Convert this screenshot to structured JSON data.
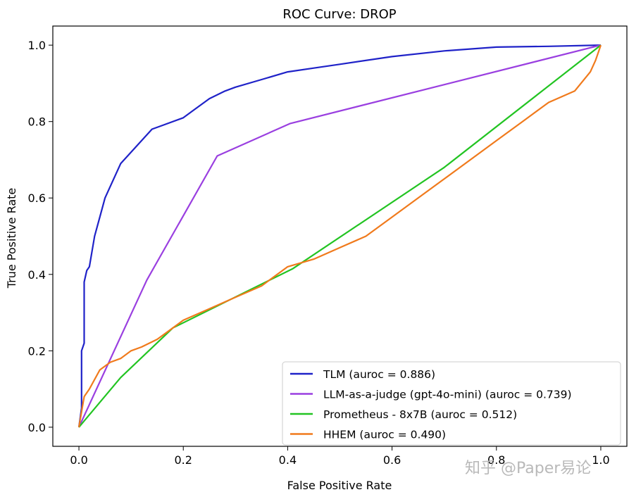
{
  "chart_data": {
    "type": "line",
    "title": "ROC Curve: DROP",
    "xlabel": "False Positive Rate",
    "ylabel": "True Positive Rate",
    "xlim": [
      -0.05,
      1.05
    ],
    "ylim": [
      -0.05,
      1.05
    ],
    "xticks": [
      "0.0",
      "0.2",
      "0.4",
      "0.6",
      "0.8",
      "1.0"
    ],
    "yticks": [
      "0.0",
      "0.2",
      "0.4",
      "0.6",
      "0.8",
      "1.0"
    ],
    "grid": false,
    "legend_position": "lower-right",
    "series": [
      {
        "name": "TLM (auroc = 0.886)",
        "color": "#1f22c8",
        "x": [
          0.0,
          0.005,
          0.005,
          0.01,
          0.01,
          0.015,
          0.02,
          0.03,
          0.04,
          0.05,
          0.06,
          0.07,
          0.08,
          0.1,
          0.12,
          0.14,
          0.16,
          0.2,
          0.22,
          0.25,
          0.28,
          0.3,
          0.35,
          0.4,
          0.45,
          0.5,
          0.6,
          0.7,
          0.8,
          0.9,
          1.0
        ],
        "y": [
          0.0,
          0.05,
          0.2,
          0.22,
          0.38,
          0.41,
          0.42,
          0.5,
          0.55,
          0.6,
          0.63,
          0.66,
          0.69,
          0.72,
          0.75,
          0.78,
          0.79,
          0.81,
          0.83,
          0.86,
          0.88,
          0.89,
          0.91,
          0.93,
          0.94,
          0.95,
          0.97,
          0.985,
          0.995,
          0.997,
          1.0
        ]
      },
      {
        "name": "LLM-as-a-judge (gpt-4o-mini) (auroc = 0.739)",
        "color": "#9a3fe0",
        "x": [
          0.0,
          0.13,
          0.265,
          0.405,
          1.0
        ],
        "y": [
          0.0,
          0.385,
          0.71,
          0.795,
          1.0
        ]
      },
      {
        "name": "Prometheus - 8x7B (auroc = 0.512)",
        "color": "#22c422",
        "x": [
          0.0,
          0.08,
          0.18,
          0.41,
          0.7,
          1.0
        ],
        "y": [
          0.0,
          0.13,
          0.26,
          0.415,
          0.68,
          1.0
        ]
      },
      {
        "name": "HHEM (auroc = 0.490)",
        "color": "#f07a1c",
        "x": [
          0.0,
          0.01,
          0.02,
          0.04,
          0.06,
          0.08,
          0.1,
          0.12,
          0.15,
          0.18,
          0.2,
          0.25,
          0.3,
          0.35,
          0.4,
          0.45,
          0.5,
          0.55,
          0.6,
          0.65,
          0.7,
          0.75,
          0.8,
          0.85,
          0.9,
          0.95,
          0.98,
          0.99,
          1.0
        ],
        "y": [
          0.0,
          0.08,
          0.1,
          0.15,
          0.17,
          0.18,
          0.2,
          0.21,
          0.23,
          0.26,
          0.28,
          0.31,
          0.34,
          0.37,
          0.42,
          0.44,
          0.47,
          0.5,
          0.55,
          0.6,
          0.65,
          0.7,
          0.75,
          0.8,
          0.85,
          0.88,
          0.93,
          0.96,
          1.0
        ]
      }
    ]
  },
  "watermark": "知乎 @Paper易论"
}
